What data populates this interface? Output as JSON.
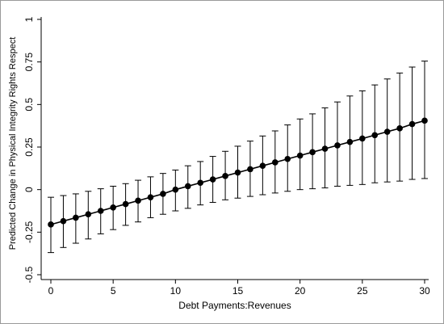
{
  "chart_data": {
    "type": "scatter",
    "title": "",
    "xlabel": "Debt Payments:Revenues",
    "ylabel": "Predicted Change in Physical Integrity Rights Respect",
    "xlim": [
      0,
      30
    ],
    "ylim": [
      -0.5,
      1
    ],
    "xticks": [
      0,
      5,
      10,
      15,
      20,
      25,
      30
    ],
    "yticks": [
      -0.5,
      -0.25,
      0,
      0.25,
      0.5,
      0.75,
      1
    ],
    "xtick_labels": [
      "0",
      "5",
      "10",
      "15",
      "20",
      "25",
      "30"
    ],
    "ytick_labels": [
      "-0.5",
      "-0.25",
      "0",
      "0.25",
      "0.5",
      "0.75",
      "1"
    ],
    "grid": false,
    "series": [
      {
        "x": [
          0,
          1,
          2,
          3,
          4,
          5,
          6,
          7,
          8,
          9,
          10,
          11,
          12,
          13,
          14,
          15,
          16,
          17,
          18,
          19,
          20,
          21,
          22,
          23,
          24,
          25,
          26,
          27,
          28,
          29,
          30
        ],
        "y": [
          -0.205,
          -0.185,
          -0.165,
          -0.145,
          -0.125,
          -0.105,
          -0.085,
          -0.065,
          -0.045,
          -0.025,
          0.0,
          0.02,
          0.04,
          0.06,
          0.08,
          0.1,
          0.12,
          0.14,
          0.16,
          0.18,
          0.2,
          0.22,
          0.24,
          0.26,
          0.28,
          0.3,
          0.32,
          0.34,
          0.36,
          0.385,
          0.405
        ],
        "lower": [
          -0.37,
          -0.34,
          -0.315,
          -0.29,
          -0.26,
          -0.235,
          -0.21,
          -0.19,
          -0.165,
          -0.145,
          -0.125,
          -0.11,
          -0.09,
          -0.075,
          -0.06,
          -0.05,
          -0.04,
          -0.03,
          -0.02,
          -0.01,
          0.0,
          0.005,
          0.01,
          0.02,
          0.025,
          0.03,
          0.04,
          0.045,
          0.05,
          0.06,
          0.065
        ],
        "upper": [
          -0.045,
          -0.035,
          -0.025,
          -0.01,
          0.005,
          0.02,
          0.035,
          0.055,
          0.075,
          0.095,
          0.115,
          0.14,
          0.165,
          0.195,
          0.225,
          0.255,
          0.285,
          0.315,
          0.345,
          0.38,
          0.415,
          0.445,
          0.48,
          0.515,
          0.55,
          0.58,
          0.615,
          0.65,
          0.685,
          0.72,
          0.755
        ]
      }
    ]
  }
}
